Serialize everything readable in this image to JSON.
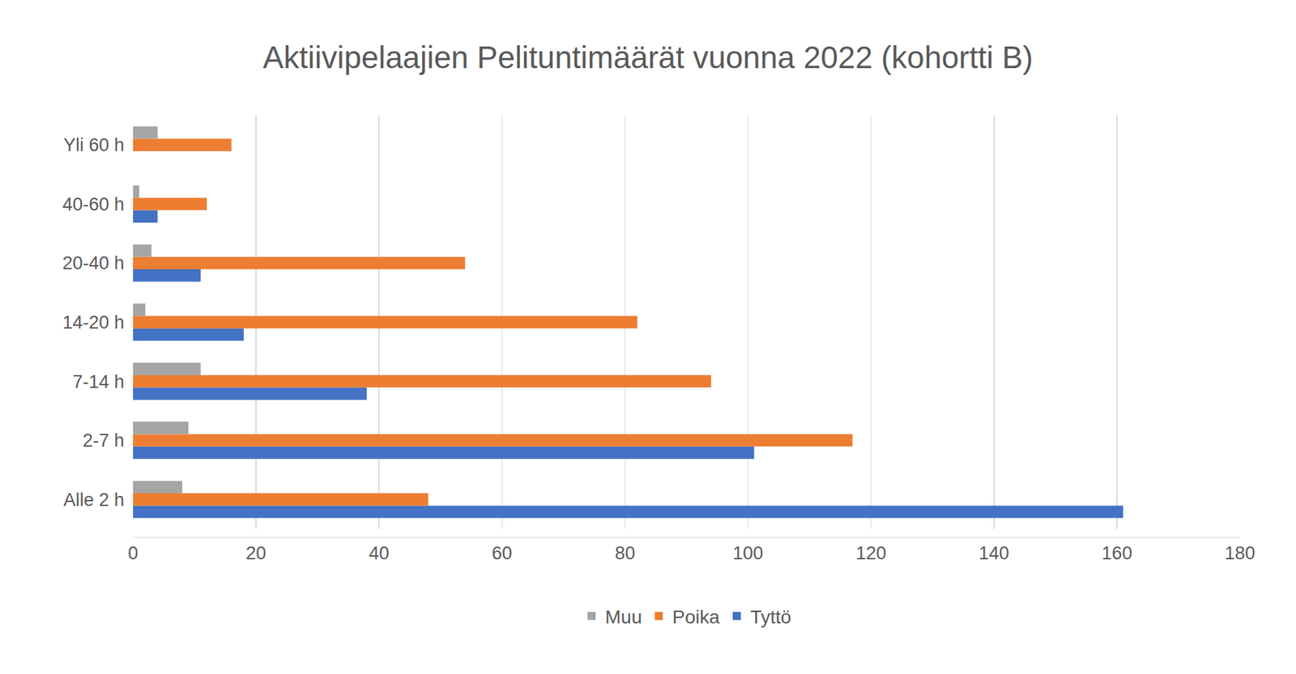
{
  "chart_data": {
    "type": "bar",
    "orientation": "horizontal",
    "title": "Aktiivipelaajien Pelituntimäärät vuonna 2022 (kohortti B)",
    "categories": [
      "Alle 2 h",
      "2-7 h",
      "7-14 h",
      "14-20 h",
      "20-40 h",
      "40-60 h",
      "Yli 60 h"
    ],
    "series": [
      {
        "name": "Muu",
        "color": "#a5a5a5",
        "values": [
          8,
          9,
          11,
          2,
          3,
          1,
          4
        ]
      },
      {
        "name": "Poika",
        "color": "#ed7d31",
        "values": [
          48,
          117,
          94,
          82,
          54,
          12,
          16
        ]
      },
      {
        "name": "Tyttö",
        "color": "#4472c4",
        "values": [
          161,
          101,
          38,
          18,
          11,
          4,
          0
        ]
      }
    ],
    "xlim": [
      0,
      180
    ],
    "xticks": [
      0,
      20,
      40,
      60,
      80,
      100,
      120,
      140,
      160,
      180
    ],
    "grid": true,
    "legend": "bottom"
  }
}
